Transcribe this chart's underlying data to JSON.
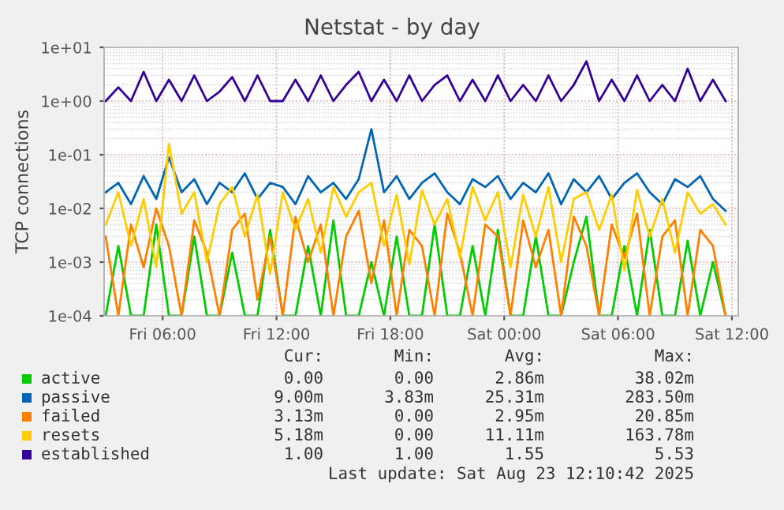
{
  "chart_data": {
    "type": "line",
    "title": "Netstat - by day",
    "ylabel": "TCP connections",
    "log": "y",
    "grid": true,
    "legend": "bottom",
    "xlim": [
      "2025-08-22T02:55",
      "2025-08-23T12:20"
    ],
    "xticks": [
      {
        "value": "2025-08-22T06:00",
        "label": "Fri 06:00"
      },
      {
        "value": "2025-08-22T12:00",
        "label": "Fri 12:00"
      },
      {
        "value": "2025-08-22T18:00",
        "label": "Fri 18:00"
      },
      {
        "value": "2025-08-23T00:00",
        "label": "Sat 00:00"
      },
      {
        "value": "2025-08-23T06:00",
        "label": "Sat 06:00"
      },
      {
        "value": "2025-08-23T12:00",
        "label": "Sat 12:00"
      }
    ],
    "ylim": [
      0.0001,
      10
    ],
    "yticks": [
      {
        "value": 0.0001,
        "label": "1e-04"
      },
      {
        "value": 0.001,
        "label": "1e-03"
      },
      {
        "value": 0.01,
        "label": "1e-02"
      },
      {
        "value": 0.1,
        "label": "1e-01"
      },
      {
        "value": 1,
        "label": "1e+00"
      },
      {
        "value": 10,
        "label": "1e+01"
      }
    ],
    "x": [
      "2025-08-22T03:00",
      "2025-08-22T03:40",
      "2025-08-22T04:20",
      "2025-08-22T05:00",
      "2025-08-22T05:40",
      "2025-08-22T06:20",
      "2025-08-22T07:00",
      "2025-08-22T07:40",
      "2025-08-22T08:20",
      "2025-08-22T09:00",
      "2025-08-22T09:40",
      "2025-08-22T10:20",
      "2025-08-22T11:00",
      "2025-08-22T11:40",
      "2025-08-22T12:20",
      "2025-08-22T13:00",
      "2025-08-22T13:40",
      "2025-08-22T14:20",
      "2025-08-22T15:00",
      "2025-08-22T15:40",
      "2025-08-22T16:20",
      "2025-08-22T17:00",
      "2025-08-22T17:40",
      "2025-08-22T18:20",
      "2025-08-22T19:00",
      "2025-08-22T19:40",
      "2025-08-22T20:20",
      "2025-08-22T21:00",
      "2025-08-22T21:40",
      "2025-08-22T22:20",
      "2025-08-22T23:00",
      "2025-08-22T23:40",
      "2025-08-23T00:20",
      "2025-08-23T01:00",
      "2025-08-23T01:40",
      "2025-08-23T02:20",
      "2025-08-23T03:00",
      "2025-08-23T03:40",
      "2025-08-23T04:20",
      "2025-08-23T05:00",
      "2025-08-23T05:40",
      "2025-08-23T06:20",
      "2025-08-23T07:00",
      "2025-08-23T07:40",
      "2025-08-23T08:20",
      "2025-08-23T09:00",
      "2025-08-23T09:40",
      "2025-08-23T10:20",
      "2025-08-23T11:00",
      "2025-08-23T11:40"
    ],
    "series": [
      {
        "name": "active",
        "color": "#00cc00",
        "values": [
          0.0001,
          0.002,
          0.0001,
          0.0001,
          0.005,
          0.0001,
          0.0001,
          0.003,
          0.0001,
          0.0001,
          0.0015,
          0.0001,
          0.0001,
          0.004,
          0.0001,
          0.0001,
          0.002,
          0.0001,
          0.006,
          0.0001,
          0.0001,
          0.001,
          0.0001,
          0.003,
          0.0001,
          0.0001,
          0.005,
          0.0001,
          0.0001,
          0.002,
          0.0001,
          0.004,
          0.0001,
          0.0001,
          0.003,
          0.0001,
          0.0001,
          0.001,
          0.007,
          0.0001,
          0.0001,
          0.002,
          0.0001,
          0.004,
          0.0001,
          0.0001,
          0.0025,
          0.0001,
          0.001,
          0.0001
        ]
      },
      {
        "name": "passive",
        "color": "#0066b3",
        "values": [
          0.02,
          0.03,
          0.012,
          0.04,
          0.015,
          0.09,
          0.02,
          0.035,
          0.012,
          0.03,
          0.02,
          0.045,
          0.015,
          0.03,
          0.025,
          0.012,
          0.04,
          0.02,
          0.03,
          0.015,
          0.035,
          0.3,
          0.02,
          0.04,
          0.015,
          0.03,
          0.045,
          0.02,
          0.012,
          0.035,
          0.025,
          0.04,
          0.015,
          0.03,
          0.02,
          0.045,
          0.012,
          0.035,
          0.02,
          0.04,
          0.015,
          0.03,
          0.045,
          0.02,
          0.012,
          0.035,
          0.025,
          0.04,
          0.015,
          0.009
        ]
      },
      {
        "name": "failed",
        "color": "#ff8000",
        "values": [
          0.003,
          0.0001,
          0.005,
          0.0008,
          0.01,
          0.002,
          0.0001,
          0.006,
          0.0015,
          0.0001,
          0.004,
          0.008,
          0.0002,
          0.003,
          0.0001,
          0.007,
          0.001,
          0.005,
          0.0001,
          0.003,
          0.009,
          0.0004,
          0.006,
          0.0001,
          0.004,
          0.002,
          0.0001,
          0.008,
          0.0015,
          0.0001,
          0.005,
          0.003,
          0.0001,
          0.006,
          0.0008,
          0.004,
          0.0001,
          0.007,
          0.002,
          0.0001,
          0.005,
          0.0012,
          0.008,
          0.0001,
          0.003,
          0.006,
          0.0001,
          0.004,
          0.002,
          0.0001
        ]
      },
      {
        "name": "resets",
        "color": "#ffcc00",
        "values": [
          0.005,
          0.02,
          0.002,
          0.015,
          0.0008,
          0.16,
          0.008,
          0.02,
          0.001,
          0.012,
          0.025,
          0.003,
          0.018,
          0.0006,
          0.02,
          0.004,
          0.015,
          0.0015,
          0.025,
          0.007,
          0.02,
          0.03,
          0.002,
          0.018,
          0.0009,
          0.022,
          0.005,
          0.015,
          0.0012,
          0.025,
          0.006,
          0.02,
          0.0008,
          0.018,
          0.003,
          0.025,
          0.001,
          0.015,
          0.02,
          0.004,
          0.018,
          0.0007,
          0.022,
          0.003,
          0.015,
          0.0015,
          0.02,
          0.008,
          0.012,
          0.005
        ]
      },
      {
        "name": "established",
        "color": "#330099",
        "values": [
          1,
          1.8,
          1,
          3.5,
          1,
          2.5,
          1,
          3,
          1,
          1.5,
          2.8,
          1,
          3,
          1,
          1,
          2.5,
          1,
          3,
          1,
          2,
          3.5,
          1,
          2.5,
          1,
          3,
          1,
          2,
          3,
          1,
          2.5,
          1,
          3,
          1,
          2,
          1,
          3,
          1,
          2,
          5.5,
          1,
          2.5,
          1,
          3,
          1,
          2,
          1,
          4,
          1,
          2.5,
          1
        ]
      }
    ],
    "annotations": [
      "Cur:",
      "Min:",
      "Avg:",
      "Max:",
      "0.00",
      "0.00",
      "2.86m",
      "38.02m",
      "9.00m",
      "3.83m",
      "25.31m",
      "283.50m",
      "3.13m",
      "0.00",
      "2.95m",
      "20.85m",
      "5.18m",
      "0.00",
      "11.11m",
      "163.78m",
      "1.00",
      "1.00",
      "1.55",
      "5.53",
      "Last update: Sat Aug 23 12:10:42 2025"
    ]
  }
}
